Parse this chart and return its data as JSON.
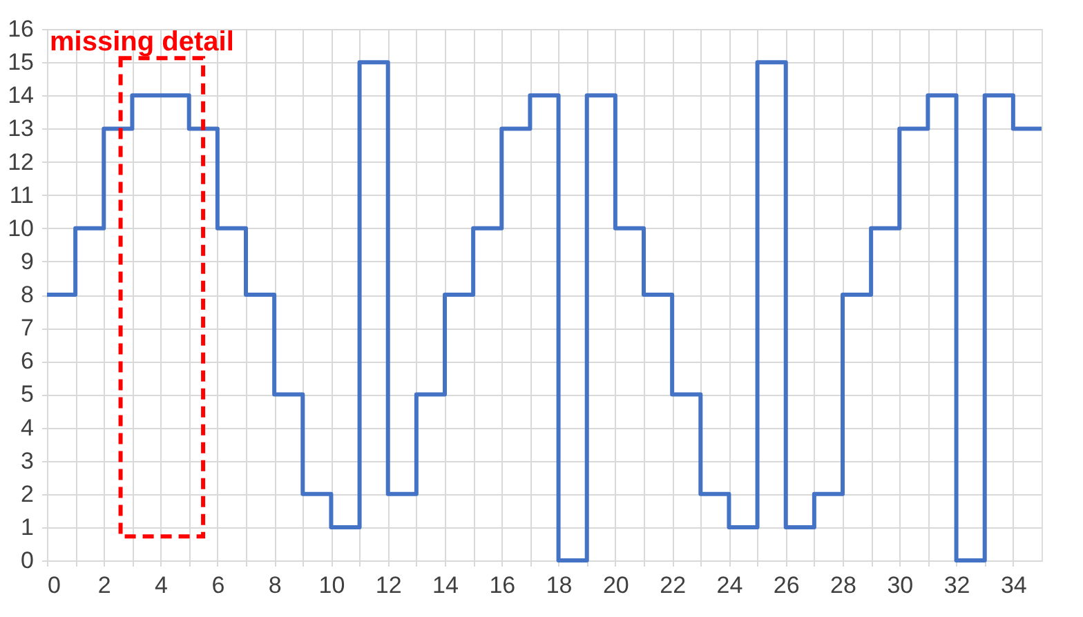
{
  "chart_data": {
    "type": "step",
    "x": [
      0,
      1,
      2,
      3,
      4,
      5,
      6,
      7,
      8,
      9,
      10,
      11,
      12,
      13,
      14,
      15,
      16,
      17,
      18,
      19,
      20,
      21,
      22,
      23,
      24,
      25,
      26,
      27,
      28,
      29,
      30,
      31,
      32,
      33,
      34,
      35
    ],
    "series": [
      {
        "color": "#4472c4",
        "values": [
          8,
          10,
          13,
          14,
          14,
          13,
          10,
          8,
          5,
          2,
          1,
          15,
          2,
          5,
          8,
          10,
          13,
          14,
          0,
          14,
          10,
          8,
          5,
          2,
          1,
          15,
          1,
          2,
          8,
          10,
          13,
          14,
          0,
          14,
          13,
          13
        ]
      }
    ],
    "xlim": [
      0,
      35
    ],
    "xticks": [
      0,
      {
        "value": 1,
        "label": null
      },
      2,
      {
        "value": 3,
        "label": null
      },
      4,
      {
        "value": 5,
        "label": null
      },
      6,
      {
        "value": 7,
        "label": null
      },
      8,
      {
        "value": 9,
        "label": null
      },
      10,
      {
        "value": 11,
        "label": null
      },
      12,
      {
        "value": 13,
        "label": null
      },
      14,
      {
        "value": 15,
        "label": null
      },
      16,
      {
        "value": 17,
        "label": null
      },
      18,
      {
        "value": 19,
        "label": null
      },
      20,
      {
        "value": 21,
        "label": null
      },
      22,
      {
        "value": 23,
        "label": null
      },
      24,
      {
        "value": 25,
        "label": null
      },
      26,
      {
        "value": 27,
        "label": null
      },
      28,
      {
        "value": 29,
        "label": null
      },
      30,
      {
        "value": 31,
        "label": null
      },
      32,
      {
        "value": 33,
        "label": null
      },
      34
    ],
    "ylim": [
      0,
      16
    ],
    "yticks": [
      0,
      1,
      2,
      3,
      4,
      5,
      6,
      7,
      8,
      9,
      10,
      11,
      12,
      13,
      14,
      15,
      16
    ],
    "grid": true,
    "marker": "none",
    "line_style": "solid",
    "annotations": [
      "missing detail"
    ]
  }
}
